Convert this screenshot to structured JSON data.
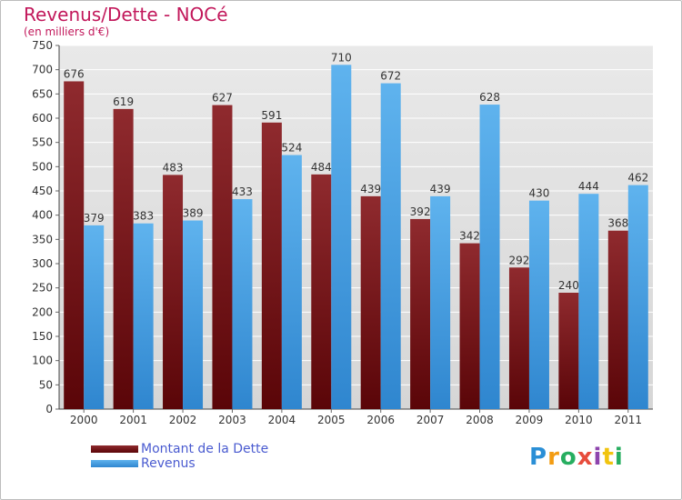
{
  "chart_data": {
    "type": "bar",
    "title": "Revenus/Dette - NOCé",
    "subtitle": "(en milliers d'€)",
    "categories": [
      "2000",
      "2001",
      "2002",
      "2003",
      "2004",
      "2005",
      "2006",
      "2007",
      "2008",
      "2009",
      "2010",
      "2011"
    ],
    "series": [
      {
        "name": "Montant de la Dette",
        "values": [
          676,
          619,
          483,
          627,
          591,
          484,
          439,
          392,
          342,
          292,
          240,
          368
        ],
        "color": "#7a1a1f"
      },
      {
        "name": "Revenus",
        "values": [
          379,
          383,
          389,
          433,
          524,
          710,
          672,
          439,
          628,
          430,
          444,
          462
        ],
        "color": "#4aa3e6"
      }
    ],
    "ylim": [
      0,
      750
    ],
    "yticks": [
      0,
      50,
      100,
      150,
      200,
      250,
      300,
      350,
      400,
      450,
      500,
      550,
      600,
      650,
      700,
      750
    ],
    "grid": true,
    "legend_position": "bottom-left"
  },
  "logo": {
    "letters": [
      "P",
      "r",
      "o",
      "x",
      "i",
      "t",
      "i"
    ],
    "colors": [
      "#2b8fd6",
      "#f39c12",
      "#27ae60",
      "#e74c3c",
      "#8e44ad",
      "#f1c40f",
      "#27ae60"
    ]
  }
}
